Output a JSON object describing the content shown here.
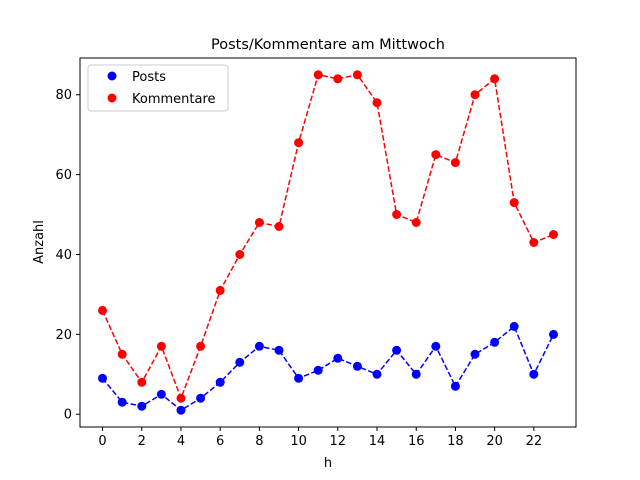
{
  "chart_data": {
    "type": "line",
    "title": "Posts/Kommentare am Mittwoch",
    "xlabel": "h",
    "ylabel": "Anzahl",
    "xlim": [
      -1.15,
      24.15
    ],
    "ylim": [
      -3.2,
      89.2
    ],
    "xticks": [
      0,
      2,
      4,
      6,
      8,
      10,
      12,
      14,
      16,
      18,
      20,
      22
    ],
    "yticks": [
      0,
      20,
      40,
      60,
      80
    ],
    "grid": false,
    "legend_position": "top-left",
    "x": [
      0,
      1,
      2,
      3,
      4,
      5,
      6,
      7,
      8,
      9,
      10,
      11,
      12,
      13,
      14,
      15,
      16,
      17,
      18,
      19,
      20,
      21,
      22,
      23
    ],
    "series": [
      {
        "name": "Posts",
        "color": "#0000ff",
        "line_style": "dashed",
        "marker": "circle",
        "values": [
          9,
          3,
          2,
          5,
          1,
          4,
          8,
          13,
          17,
          16,
          9,
          11,
          14,
          12,
          10,
          16,
          10,
          17,
          7,
          15,
          18,
          22,
          10,
          20
        ]
      },
      {
        "name": "Kommentare",
        "color": "#ff0000",
        "line_style": "dashed",
        "marker": "circle",
        "values": [
          26,
          15,
          8,
          17,
          4,
          17,
          31,
          40,
          48,
          47,
          68,
          85,
          84,
          85,
          78,
          50,
          48,
          65,
          63,
          80,
          84,
          53,
          43,
          45
        ]
      }
    ]
  }
}
